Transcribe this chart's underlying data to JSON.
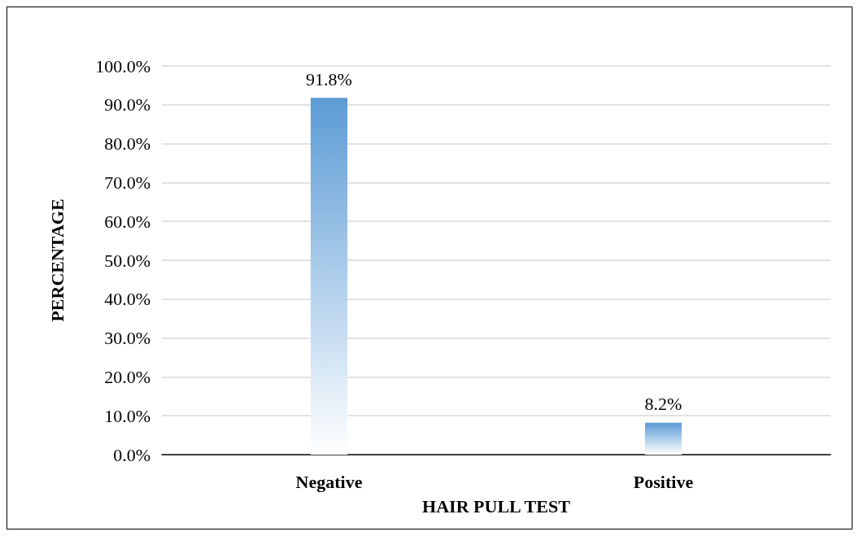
{
  "chart_data": {
    "type": "bar",
    "xlabel": "HAIR PULL TEST",
    "ylabel": "PERCENTAGE",
    "categories": [
      "Negative",
      "Positive"
    ],
    "values": [
      91.8,
      8.2
    ],
    "value_labels": [
      "91.8%",
      "8.2%"
    ],
    "color": "#5b9bd5",
    "ylim": [
      0,
      100
    ],
    "yticks": [
      {
        "value": 0,
        "label": "0.0%"
      },
      {
        "value": 10,
        "label": "10.0%"
      },
      {
        "value": 20,
        "label": "20.0%"
      },
      {
        "value": 30,
        "label": "30.0%"
      },
      {
        "value": 40,
        "label": "40.0%"
      },
      {
        "value": 50,
        "label": "50.0%"
      },
      {
        "value": 60,
        "label": "60.0%"
      },
      {
        "value": 70,
        "label": "70.0%"
      },
      {
        "value": 80,
        "label": "80.0%"
      },
      {
        "value": 90,
        "label": "90.0%"
      },
      {
        "value": 100,
        "label": "100.0%"
      }
    ],
    "grid": "y"
  }
}
